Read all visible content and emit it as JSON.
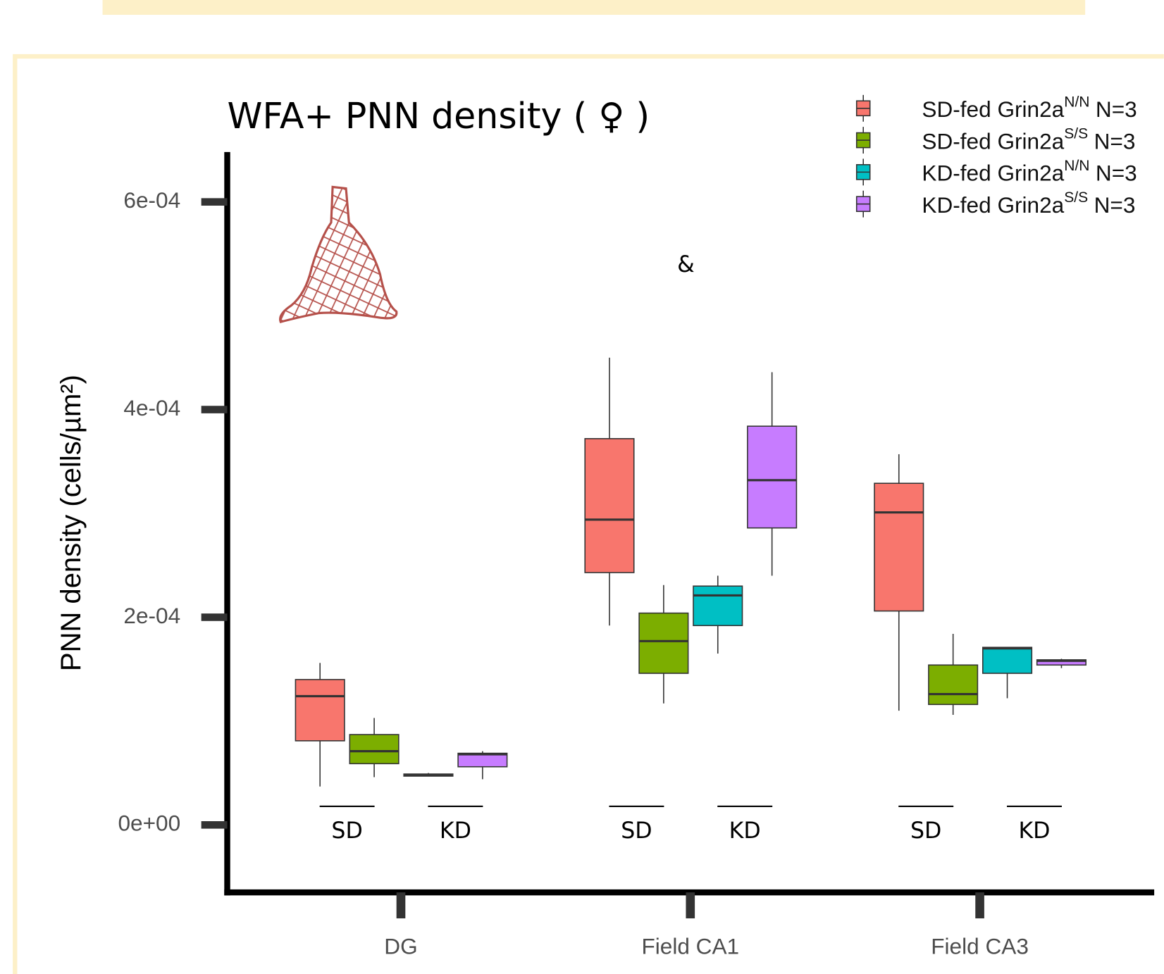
{
  "chart_data": {
    "type": "box",
    "title": "WFA+ PNN density ( ♀ )",
    "y_label": "PNN density (cells/µm²)",
    "annotation": "&",
    "categories": [
      "DG",
      "Field CA1",
      "Field CA3"
    ],
    "diet_labels": [
      "SD",
      "KD"
    ],
    "ylim": [
      -6.5e-05,
      0.000648
    ],
    "yticks": [
      {
        "value": 0,
        "label": "0e+00"
      },
      {
        "value": 0.0002,
        "label": "2e-04"
      },
      {
        "value": 0.0004,
        "label": "4e-04"
      },
      {
        "value": 0.0006,
        "label": "6e-04"
      }
    ],
    "series": [
      {
        "name": "SD-fed Grin2a",
        "superscript": "N/N",
        "n_label": "N=3",
        "color": "#f8766d",
        "low": [
          3.7e-05,
          0.000192,
          0.00011
        ],
        "q1": [
          8.1e-05,
          0.000243,
          0.000206
        ],
        "median": [
          0.000124,
          0.000294,
          0.000301
        ],
        "q3": [
          0.00014,
          0.000372,
          0.000329
        ],
        "high": [
          0.000156,
          0.00045,
          0.000357
        ]
      },
      {
        "name": "SD-fed Grin2a",
        "superscript": "S/S",
        "n_label": "N=3",
        "color": "#7cae00",
        "low": [
          4.6e-05,
          0.000117,
          0.000106
        ],
        "q1": [
          5.9e-05,
          0.000146,
          0.000116
        ],
        "median": [
          7.1e-05,
          0.000177,
          0.000126
        ],
        "q3": [
          8.7e-05,
          0.000204,
          0.000154
        ],
        "high": [
          0.000103,
          0.000231,
          0.000184
        ]
      },
      {
        "name": "KD-fed Grin2a",
        "superscript": "N/N",
        "n_label": "N=3",
        "color": "#00bfc4",
        "low": [
          4.7e-05,
          0.000165,
          0.000122
        ],
        "q1": [
          4.7e-05,
          0.000192,
          0.000146
        ],
        "median": [
          4.8e-05,
          0.000221,
          0.00017
        ],
        "q3": [
          4.9e-05,
          0.00023,
          0.000171
        ],
        "high": [
          5e-05,
          0.00024,
          0.000171
        ]
      },
      {
        "name": "KD-fed Grin2a",
        "superscript": "S/S",
        "n_label": "N=3",
        "color": "#c77cff",
        "low": [
          4.4e-05,
          0.00024,
          0.000151
        ],
        "q1": [
          5.6e-05,
          0.000286,
          0.000154
        ],
        "median": [
          6.8e-05,
          0.000332,
          0.000158
        ],
        "q3": [
          6.9e-05,
          0.000384,
          0.000159
        ],
        "high": [
          7.1e-05,
          0.000436,
          0.00016
        ]
      }
    ]
  }
}
